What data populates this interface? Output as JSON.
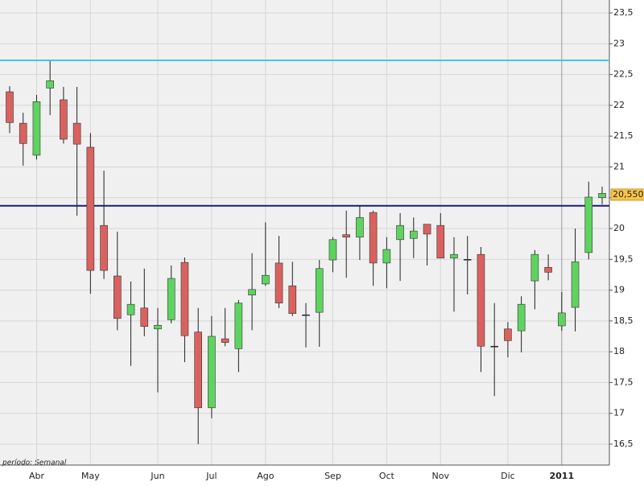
{
  "chart_data": {
    "type": "candlestick",
    "categories": [
      null,
      null,
      "Abr",
      null,
      null,
      null,
      "May",
      null,
      null,
      null,
      null,
      "Jun",
      null,
      null,
      null,
      "Jul",
      null,
      null,
      null,
      "Ago",
      null,
      null,
      null,
      null,
      "Sep",
      null,
      null,
      null,
      "Oct",
      null,
      null,
      null,
      "Nov",
      null,
      null,
      null,
      null,
      "Dic",
      null,
      null,
      null,
      "2011",
      null,
      null,
      null
    ],
    "open": [
      22.22,
      21.71,
      21.19,
      22.28,
      22.09,
      21.71,
      21.32,
      20.05,
      19.23,
      18.6,
      18.71,
      18.37,
      18.52,
      19.45,
      18.32,
      17.09,
      18.21,
      18.05,
      18.92,
      19.1,
      19.44,
      19.07,
      18.6,
      18.64,
      19.49,
      19.9,
      19.86,
      20.26,
      19.44,
      19.82,
      19.84,
      20.07,
      20.05,
      19.52,
      19.5,
      19.58,
      18.09,
      18.37,
      18.34,
      19.15,
      19.37,
      18.42,
      18.72,
      19.61,
      20.5
    ],
    "high": [
      22.31,
      21.88,
      22.17,
      22.72,
      22.3,
      22.3,
      21.55,
      20.94,
      19.95,
      19.14,
      19.35,
      18.71,
      19.4,
      19.53,
      18.71,
      18.58,
      18.71,
      18.84,
      19.6,
      20.1,
      19.88,
      19.46,
      18.79,
      19.49,
      19.86,
      20.29,
      20.37,
      20.29,
      19.86,
      20.25,
      20.18,
      20.07,
      20.25,
      19.86,
      19.88,
      19.7,
      18.79,
      18.48,
      18.9,
      19.65,
      19.58,
      18.97,
      20.0,
      20.76,
      20.68
    ],
    "low": [
      21.55,
      21.02,
      21.12,
      21.84,
      21.38,
      20.21,
      18.94,
      19.18,
      18.35,
      17.77,
      18.25,
      17.34,
      18.46,
      17.83,
      16.5,
      16.92,
      18.09,
      17.67,
      18.35,
      19.07,
      18.71,
      18.58,
      18.07,
      18.08,
      19.29,
      19.2,
      19.49,
      19.07,
      19.03,
      19.15,
      19.52,
      19.4,
      19.52,
      18.65,
      18.93,
      17.67,
      17.28,
      17.91,
      17.99,
      18.69,
      19.16,
      18.34,
      18.33,
      19.5,
      20.39
    ],
    "close": [
      21.72,
      21.38,
      22.06,
      22.4,
      21.45,
      21.37,
      19.32,
      19.32,
      18.54,
      18.77,
      18.41,
      18.43,
      19.19,
      18.26,
      17.09,
      18.25,
      18.15,
      18.79,
      19.01,
      19.24,
      18.79,
      18.62,
      18.6,
      19.35,
      19.82,
      19.86,
      20.18,
      19.44,
      19.66,
      20.05,
      19.96,
      19.91,
      19.52,
      19.58,
      19.5,
      18.09,
      18.09,
      18.18,
      18.77,
      19.58,
      19.29,
      18.63,
      19.46,
      20.51,
      20.57
    ],
    "up_color": "#5fd35f",
    "down_color": "#d9625f",
    "ylim": [
      16.16,
      23.71
    ],
    "yticks": [
      {
        "value": 16.5,
        "label": "16,5"
      },
      17,
      {
        "value": 17.5,
        "label": "17,5"
      },
      18,
      {
        "value": 18.5,
        "label": "18,5"
      },
      19,
      {
        "value": 19.5,
        "label": "19,5"
      },
      20,
      {
        "value": 20.5,
        "label": "20,5"
      },
      21,
      {
        "value": 21.5,
        "label": "21,5"
      },
      22,
      {
        "value": 22.5,
        "label": "22,5"
      },
      23,
      {
        "value": 23.5,
        "label": "23,5"
      }
    ],
    "grid": true,
    "hlines": [
      {
        "value": 22.73,
        "color": "#3ec9e6"
      },
      {
        "value": 20.37,
        "color": "#1c1c78"
      }
    ],
    "last_price": {
      "value": 20.55,
      "label": "20,5500"
    },
    "footnote": "período: Semanal"
  }
}
